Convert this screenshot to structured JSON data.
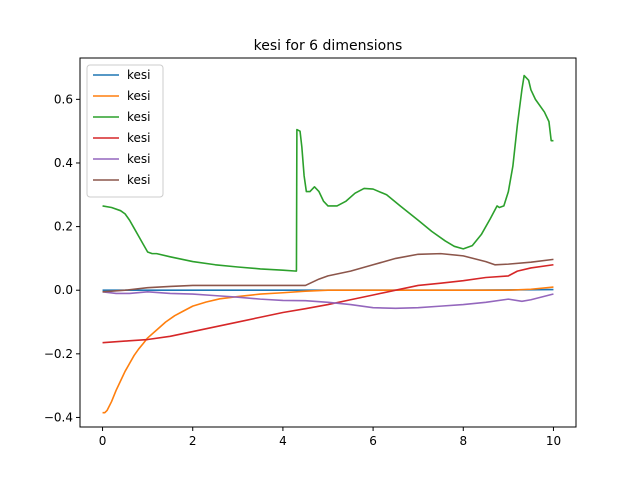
{
  "chart_data": {
    "type": "line",
    "title": "kesi for 6 dimensions",
    "xlabel": "",
    "ylabel": "",
    "xlim": [
      -0.5,
      10.5
    ],
    "ylim": [
      -0.43,
      0.73
    ],
    "x_ticks": [
      0,
      2,
      4,
      6,
      8,
      10
    ],
    "x_tick_labels": [
      "0",
      "2",
      "4",
      "6",
      "8",
      "10"
    ],
    "y_ticks": [
      -0.4,
      -0.2,
      0.0,
      0.2,
      0.4,
      0.6
    ],
    "y_tick_labels": [
      "−0.4",
      "−0.2",
      "0.0",
      "0.2",
      "0.4",
      "0.6"
    ],
    "grid": false,
    "legend_position": "upper-left",
    "series": [
      {
        "name": "kesi",
        "color": "#1f77b4",
        "points": [
          [
            0.0,
            0.0
          ],
          [
            2.0,
            0.0
          ],
          [
            4.0,
            0.0
          ],
          [
            6.0,
            0.0
          ],
          [
            8.0,
            0.0
          ],
          [
            10.0,
            0.002
          ]
        ]
      },
      {
        "name": "kesi",
        "color": "#ff7f0e",
        "points": [
          [
            0.0,
            -0.385
          ],
          [
            0.05,
            -0.385
          ],
          [
            0.1,
            -0.378
          ],
          [
            0.2,
            -0.35
          ],
          [
            0.3,
            -0.315
          ],
          [
            0.4,
            -0.285
          ],
          [
            0.5,
            -0.255
          ],
          [
            0.6,
            -0.23
          ],
          [
            0.7,
            -0.205
          ],
          [
            0.8,
            -0.185
          ],
          [
            0.9,
            -0.168
          ],
          [
            1.0,
            -0.15
          ],
          [
            1.2,
            -0.125
          ],
          [
            1.4,
            -0.1
          ],
          [
            1.6,
            -0.08
          ],
          [
            1.8,
            -0.065
          ],
          [
            2.0,
            -0.05
          ],
          [
            2.3,
            -0.037
          ],
          [
            2.6,
            -0.027
          ],
          [
            3.0,
            -0.02
          ],
          [
            3.5,
            -0.012
          ],
          [
            4.0,
            -0.008
          ],
          [
            4.5,
            -0.003
          ],
          [
            5.0,
            0.0
          ],
          [
            6.0,
            0.0
          ],
          [
            7.0,
            0.0
          ],
          [
            8.0,
            0.0
          ],
          [
            9.0,
            0.0
          ],
          [
            9.5,
            0.003
          ],
          [
            10.0,
            0.01
          ]
        ]
      },
      {
        "name": "kesi",
        "color": "#2ca02c",
        "points": [
          [
            0.0,
            0.265
          ],
          [
            0.2,
            0.26
          ],
          [
            0.4,
            0.25
          ],
          [
            0.5,
            0.24
          ],
          [
            0.6,
            0.22
          ],
          [
            0.7,
            0.195
          ],
          [
            0.8,
            0.17
          ],
          [
            0.9,
            0.145
          ],
          [
            1.0,
            0.12
          ],
          [
            1.1,
            0.115
          ],
          [
            1.2,
            0.115
          ],
          [
            1.5,
            0.105
          ],
          [
            2.0,
            0.09
          ],
          [
            2.5,
            0.08
          ],
          [
            3.0,
            0.073
          ],
          [
            3.5,
            0.067
          ],
          [
            4.0,
            0.063
          ],
          [
            4.3,
            0.06
          ],
          [
            4.31,
            0.505
          ],
          [
            4.38,
            0.5
          ],
          [
            4.42,
            0.45
          ],
          [
            4.47,
            0.36
          ],
          [
            4.52,
            0.31
          ],
          [
            4.6,
            0.31
          ],
          [
            4.7,
            0.325
          ],
          [
            4.8,
            0.31
          ],
          [
            4.9,
            0.28
          ],
          [
            5.0,
            0.265
          ],
          [
            5.2,
            0.265
          ],
          [
            5.4,
            0.28
          ],
          [
            5.6,
            0.305
          ],
          [
            5.8,
            0.32
          ],
          [
            6.0,
            0.318
          ],
          [
            6.3,
            0.3
          ],
          [
            6.6,
            0.265
          ],
          [
            7.0,
            0.22
          ],
          [
            7.3,
            0.185
          ],
          [
            7.6,
            0.155
          ],
          [
            7.8,
            0.138
          ],
          [
            8.0,
            0.13
          ],
          [
            8.2,
            0.14
          ],
          [
            8.4,
            0.175
          ],
          [
            8.6,
            0.225
          ],
          [
            8.75,
            0.265
          ],
          [
            8.8,
            0.26
          ],
          [
            8.9,
            0.265
          ],
          [
            9.0,
            0.31
          ],
          [
            9.1,
            0.39
          ],
          [
            9.2,
            0.52
          ],
          [
            9.3,
            0.63
          ],
          [
            9.35,
            0.675
          ],
          [
            9.45,
            0.66
          ],
          [
            9.5,
            0.63
          ],
          [
            9.6,
            0.6
          ],
          [
            9.8,
            0.56
          ],
          [
            9.9,
            0.53
          ],
          [
            9.95,
            0.47
          ],
          [
            10.0,
            0.47
          ]
        ]
      },
      {
        "name": "kesi",
        "color": "#d62728",
        "points": [
          [
            0.0,
            -0.165
          ],
          [
            0.5,
            -0.16
          ],
          [
            1.0,
            -0.155
          ],
          [
            1.5,
            -0.145
          ],
          [
            2.0,
            -0.13
          ],
          [
            2.5,
            -0.115
          ],
          [
            3.0,
            -0.1
          ],
          [
            3.5,
            -0.085
          ],
          [
            4.0,
            -0.07
          ],
          [
            4.5,
            -0.058
          ],
          [
            5.0,
            -0.045
          ],
          [
            5.5,
            -0.03
          ],
          [
            6.0,
            -0.015
          ],
          [
            6.5,
            0.0
          ],
          [
            7.0,
            0.015
          ],
          [
            7.5,
            0.022
          ],
          [
            8.0,
            0.03
          ],
          [
            8.5,
            0.04
          ],
          [
            9.0,
            0.045
          ],
          [
            9.2,
            0.06
          ],
          [
            9.5,
            0.07
          ],
          [
            10.0,
            0.08
          ]
        ]
      },
      {
        "name": "kesi",
        "color": "#9467bd",
        "points": [
          [
            0.0,
            -0.005
          ],
          [
            0.3,
            -0.01
          ],
          [
            0.6,
            -0.01
          ],
          [
            1.0,
            -0.005
          ],
          [
            1.5,
            -0.01
          ],
          [
            2.0,
            -0.012
          ],
          [
            2.5,
            -0.017
          ],
          [
            3.0,
            -0.022
          ],
          [
            3.5,
            -0.028
          ],
          [
            4.0,
            -0.032
          ],
          [
            4.5,
            -0.033
          ],
          [
            5.0,
            -0.038
          ],
          [
            5.5,
            -0.045
          ],
          [
            6.0,
            -0.055
          ],
          [
            6.5,
            -0.057
          ],
          [
            7.0,
            -0.055
          ],
          [
            7.5,
            -0.05
          ],
          [
            8.0,
            -0.045
          ],
          [
            8.5,
            -0.038
          ],
          [
            9.0,
            -0.028
          ],
          [
            9.3,
            -0.035
          ],
          [
            9.5,
            -0.03
          ],
          [
            10.0,
            -0.012
          ]
        ]
      },
      {
        "name": "kesi",
        "color": "#8c564b",
        "points": [
          [
            0.0,
            -0.005
          ],
          [
            0.5,
            0.0
          ],
          [
            1.0,
            0.008
          ],
          [
            1.5,
            0.012
          ],
          [
            2.0,
            0.015
          ],
          [
            3.0,
            0.015
          ],
          [
            4.0,
            0.015
          ],
          [
            4.5,
            0.015
          ],
          [
            4.8,
            0.035
          ],
          [
            5.0,
            0.045
          ],
          [
            5.5,
            0.06
          ],
          [
            6.0,
            0.08
          ],
          [
            6.5,
            0.1
          ],
          [
            7.0,
            0.113
          ],
          [
            7.5,
            0.115
          ],
          [
            8.0,
            0.108
          ],
          [
            8.5,
            0.09
          ],
          [
            8.7,
            0.08
          ],
          [
            9.0,
            0.082
          ],
          [
            9.5,
            0.088
          ],
          [
            10.0,
            0.097
          ]
        ]
      }
    ]
  }
}
